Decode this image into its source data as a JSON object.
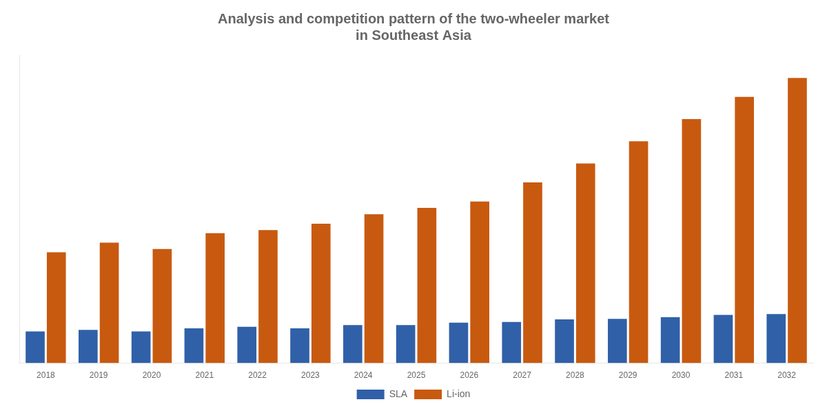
{
  "chart_data": {
    "type": "bar",
    "title": [
      "Analysis and competition pattern of the two-wheeler market",
      "in Southeast Asia"
    ],
    "categories": [
      "2018",
      "2019",
      "2020",
      "2021",
      "2022",
      "2023",
      "2024",
      "2025",
      "2026",
      "2027",
      "2028",
      "2029",
      "2030",
      "2031",
      "2032"
    ],
    "series": [
      {
        "name": "SLA",
        "color": "#3060a8",
        "values": [
          1.0,
          1.05,
          1.0,
          1.1,
          1.15,
          1.1,
          1.2,
          1.2,
          1.28,
          1.3,
          1.38,
          1.4,
          1.45,
          1.52,
          1.55
        ]
      },
      {
        "name": "Li-ion",
        "color": "#c85a10",
        "values": [
          3.5,
          3.8,
          3.6,
          4.1,
          4.2,
          4.4,
          4.7,
          4.9,
          5.1,
          5.7,
          6.3,
          7.0,
          7.7,
          8.4,
          9.0
        ]
      }
    ],
    "ylim": [
      0,
      9.72
    ],
    "grid": false,
    "legend": "bottom",
    "tick_labels": "x"
  }
}
